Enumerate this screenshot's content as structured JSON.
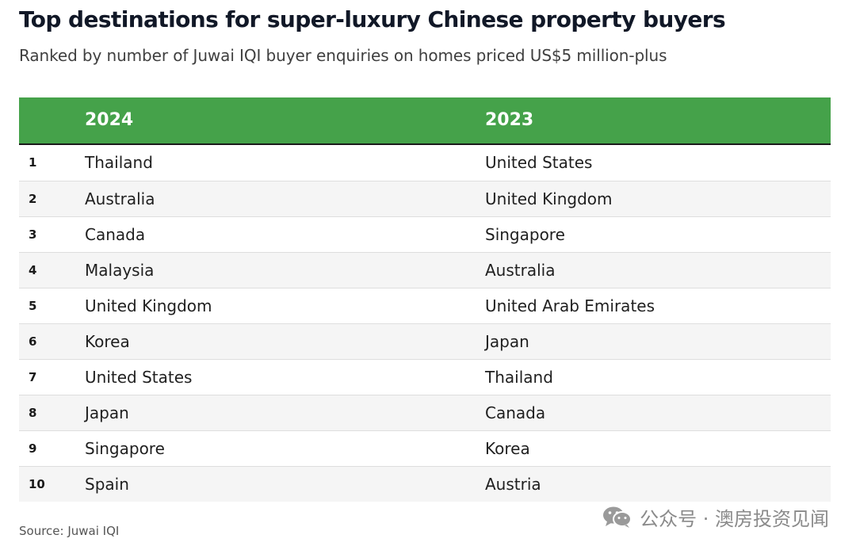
{
  "chart_data": {
    "type": "table",
    "title": "Top destinations for super-luxury Chinese property buyers",
    "subtitle": "Ranked by number of Juwai IQI buyer enquiries on homes priced US$5 million-plus",
    "columns": [
      "",
      "2024",
      "2023"
    ],
    "rows": [
      {
        "rank": "1",
        "y2024": "Thailand",
        "y2023": "United States"
      },
      {
        "rank": "2",
        "y2024": "Australia",
        "y2023": "United Kingdom"
      },
      {
        "rank": "3",
        "y2024": "Canada",
        "y2023": "Singapore"
      },
      {
        "rank": "4",
        "y2024": "Malaysia",
        "y2023": "Australia"
      },
      {
        "rank": "5",
        "y2024": "United Kingdom",
        "y2023": "United Arab Emirates"
      },
      {
        "rank": "6",
        "y2024": "Korea",
        "y2023": "Japan"
      },
      {
        "rank": "7",
        "y2024": "United States",
        "y2023": "Thailand"
      },
      {
        "rank": "8",
        "y2024": "Japan",
        "y2023": "Canada"
      },
      {
        "rank": "9",
        "y2024": "Singapore",
        "y2023": "Korea"
      },
      {
        "rank": "10",
        "y2024": "Spain",
        "y2023": "Austria"
      }
    ],
    "source": "Source: Juwai IQI",
    "header_color": "#45a24a"
  },
  "watermark": {
    "text": "公众号 · 澳房投资见闻",
    "icon": "wechat-icon"
  }
}
